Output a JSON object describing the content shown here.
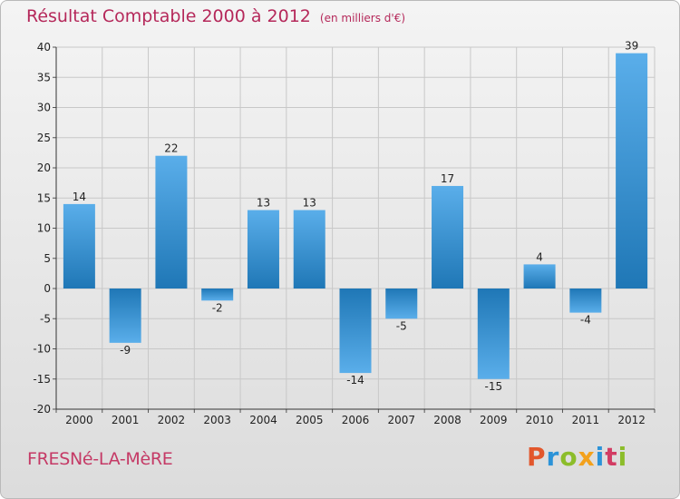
{
  "header": {
    "title": "Résultat Comptable 2000 à 2012",
    "subtitle": "(en milliers d'€)"
  },
  "footer": {
    "commune": "FRESNé-LA-MèRE",
    "logo_letters": [
      "P",
      "r",
      "o",
      "x",
      "i",
      "t",
      "i"
    ],
    "logo_colors": [
      "#e2572c",
      "#2c93d8",
      "#8cbd2a",
      "#f3a11c",
      "#2c93d8",
      "#d23c63",
      "#8cbd2a"
    ]
  },
  "chart_data": {
    "type": "bar",
    "categories": [
      "2000",
      "2001",
      "2002",
      "2003",
      "2004",
      "2005",
      "2006",
      "2007",
      "2008",
      "2009",
      "2010",
      "2011",
      "2012"
    ],
    "values": [
      14,
      -9,
      22,
      -2,
      13,
      13,
      -14,
      -5,
      17,
      -15,
      4,
      -4,
      39
    ],
    "data_labels": [
      "14",
      "-9",
      "22",
      "-2",
      "13",
      "13",
      "-14",
      "-5",
      "17",
      "-15",
      "4",
      "-4",
      "39"
    ],
    "title": "Résultat Comptable 2000 à 2012",
    "xlabel": "",
    "ylabel": "",
    "ylim": [
      -20,
      40
    ],
    "yticks": [
      40,
      35,
      30,
      25,
      20,
      15,
      10,
      5,
      0,
      -5,
      -10,
      -15,
      -20
    ],
    "grid": true,
    "bar_color_dark": "#1f77b6",
    "bar_color_light": "#5aaeea",
    "grid_color": "#c8c8c8"
  }
}
